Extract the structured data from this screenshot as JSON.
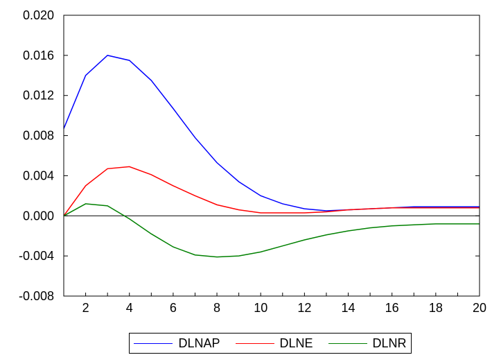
{
  "chart_data": {
    "type": "line",
    "title": "",
    "xlabel": "",
    "ylabel": "",
    "x": [
      1,
      2,
      3,
      4,
      5,
      6,
      7,
      8,
      9,
      10,
      11,
      12,
      13,
      14,
      15,
      16,
      17,
      18,
      19,
      20
    ],
    "xlim": [
      1,
      20
    ],
    "ylim": [
      -0.008,
      0.02
    ],
    "x_ticks": [
      2,
      4,
      6,
      8,
      10,
      12,
      14,
      16,
      18,
      20
    ],
    "x_tick_labels": [
      "2",
      "4",
      "6",
      "8",
      "10",
      "12",
      "14",
      "16",
      "18",
      "20"
    ],
    "y_ticks": [
      -0.008,
      -0.004,
      0.0,
      0.004,
      0.008,
      0.012,
      0.016,
      0.02
    ],
    "y_tick_labels": [
      "-0.008",
      "-0.004",
      "0.000",
      "0.004",
      "0.008",
      "0.012",
      "0.016",
      "0.020"
    ],
    "zero_line": true,
    "grid": false,
    "legend_position": "bottom",
    "series": [
      {
        "name": "DLNAP",
        "color": "#0000ff",
        "values": [
          0.0087,
          0.014,
          0.016,
          0.0155,
          0.0135,
          0.0107,
          0.0078,
          0.0053,
          0.0034,
          0.002,
          0.0012,
          0.0007,
          0.0005,
          0.0006,
          0.0007,
          0.0008,
          0.0009,
          0.0009,
          0.0009,
          0.0009
        ]
      },
      {
        "name": "DLNE",
        "color": "#ff0000",
        "values": [
          0.0,
          0.003,
          0.0047,
          0.0049,
          0.0041,
          0.003,
          0.002,
          0.0011,
          0.0006,
          0.0003,
          0.0003,
          0.0003,
          0.0004,
          0.0006,
          0.0007,
          0.0008,
          0.0008,
          0.0008,
          0.0008,
          0.0008
        ]
      },
      {
        "name": "DLNR",
        "color": "#008000",
        "values": [
          0.0,
          0.0012,
          0.001,
          -0.0003,
          -0.0018,
          -0.0031,
          -0.0039,
          -0.0041,
          -0.004,
          -0.0036,
          -0.003,
          -0.0024,
          -0.0019,
          -0.0015,
          -0.0012,
          -0.001,
          -0.0009,
          -0.0008,
          -0.0008,
          -0.0008
        ]
      }
    ]
  }
}
